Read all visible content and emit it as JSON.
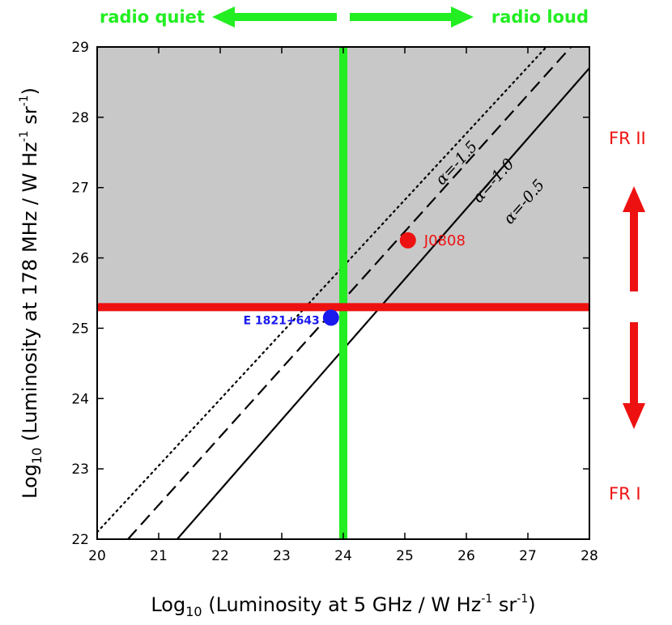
{
  "chart_data": {
    "type": "line",
    "xlabel_prefix": "Log",
    "xlabel_sub": "10",
    "xlabel_main": " (Luminosity at 5 GHz / W Hz",
    "ylabel_prefix": "Log",
    "ylabel_sub": "10",
    "ylabel_main": " (Luminosity at 178 MHz / W Hz",
    "unit_exp": "-1",
    "unit_sr": " sr",
    "unit_close": ")",
    "xlim": [
      20,
      28
    ],
    "ylim": [
      22,
      29
    ],
    "x_ticks": [
      "20",
      "21",
      "22",
      "23",
      "24",
      "25",
      "26",
      "27",
      "28"
    ],
    "y_ticks": [
      "22",
      "23",
      "24",
      "25",
      "26",
      "27",
      "28",
      "29"
    ],
    "shaded_region": {
      "x": [
        20,
        28
      ],
      "y": [
        25.3,
        29
      ],
      "color": "#c8c8c8"
    },
    "series": [
      {
        "name": "α=-1.5",
        "style": "dotted",
        "color": "#000000",
        "x": [
          20,
          27.3
        ],
        "y": [
          22.1,
          29
        ]
      },
      {
        "name": "α=-1.0",
        "style": "dashed",
        "color": "#000000",
        "x": [
          20.5,
          27.7
        ],
        "y": [
          22,
          29
        ]
      },
      {
        "name": "α=-0.5",
        "style": "solid",
        "color": "#000000",
        "x": [
          21.3,
          28
        ],
        "y": [
          22,
          28.7
        ]
      }
    ],
    "thresholds": [
      {
        "orientation": "vertical",
        "value": 24,
        "color": "#22ee22"
      },
      {
        "orientation": "horizontal",
        "value": 25.3,
        "color": "#ee1111"
      }
    ],
    "points": [
      {
        "label": "J0808",
        "x": 25.05,
        "y": 26.25,
        "color": "#ee1111"
      },
      {
        "label": "E 1821+643",
        "x": 23.8,
        "y": 25.15,
        "color": "#1a1aee"
      }
    ],
    "annotations": {
      "radio_quiet": "radio quiet",
      "radio_loud": "radio loud",
      "fr2": "FR II",
      "fr1": "FR I"
    },
    "colors": {
      "green": "#22ee22",
      "red": "#ee1111",
      "blue": "#1a1aee",
      "shade": "#c8c8c8"
    }
  }
}
